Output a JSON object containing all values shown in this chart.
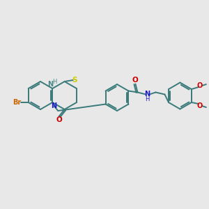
{
  "background_color": "#e8e8e8",
  "bond_color": "#3a7a7a",
  "bond_lw": 1.4,
  "atom_colors": {
    "Br": "#cc6600",
    "N": "#1a1acc",
    "NH": "#4a8888",
    "O": "#cc0000",
    "S": "#cccc00"
  },
  "font_size": 7.0
}
